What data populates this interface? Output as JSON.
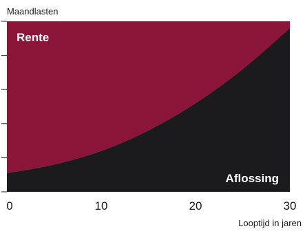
{
  "chart_data": {
    "type": "area",
    "ylabel": "Maandlasten",
    "xlabel": "Looptijd in jaren",
    "xlim": [
      0,
      30
    ],
    "x_ticks": [
      "0",
      "10",
      "20",
      "30"
    ],
    "ylim": [
      0,
      1
    ],
    "y_tick_count": 5,
    "x": [
      0,
      5,
      10,
      15,
      20,
      25,
      30
    ],
    "series": [
      {
        "name": "Aflossing",
        "values": [
          0.11,
          0.16,
          0.24,
          0.36,
          0.52,
          0.72,
          0.96
        ],
        "color": "#1b1b1d"
      },
      {
        "name": "Rente",
        "values": [
          0.89,
          0.84,
          0.76,
          0.64,
          0.48,
          0.28,
          0.04
        ],
        "color": "#8a1538"
      }
    ],
    "area_labels": [
      "Rente",
      "Aflossing"
    ],
    "grid": false
  }
}
